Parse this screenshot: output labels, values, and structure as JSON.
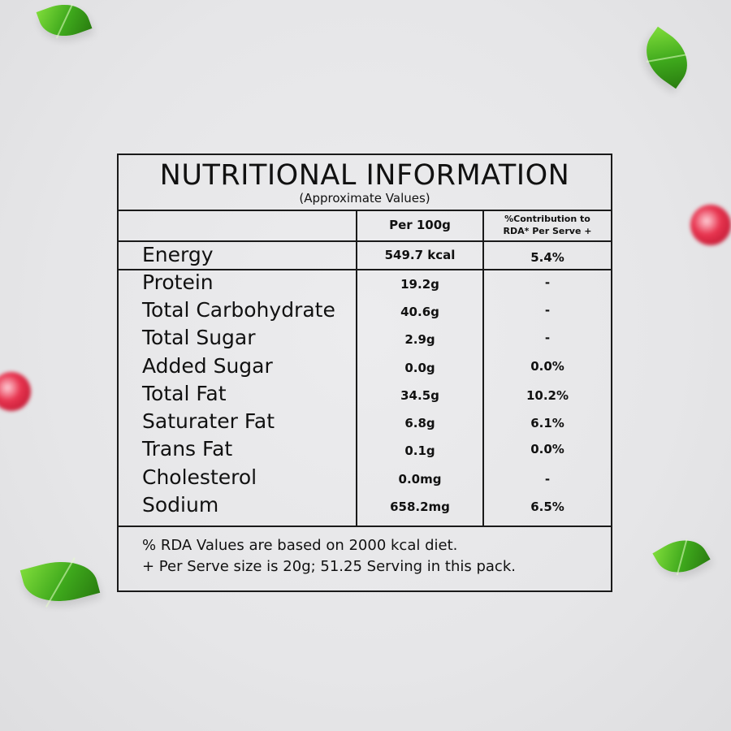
{
  "panel": {
    "title": "NUTRITIONAL INFORMATION",
    "subtitle": "(Approximate Values)",
    "columns": {
      "per100": "Per 100g",
      "rda_line1": "%Contribution to",
      "rda_line2": "RDA* Per Serve +"
    },
    "rows": [
      {
        "name": "Energy",
        "per100": "549.7 kcal",
        "rda": "5.4%"
      },
      {
        "name": "Protein",
        "per100": "19.2g",
        "rda": "-"
      },
      {
        "name": "Total Carbohydrate",
        "per100": "40.6g",
        "rda": "-"
      },
      {
        "name": "Total Sugar",
        "per100": "2.9g",
        "rda": "-"
      },
      {
        "name": "Added Sugar",
        "per100": "0.0g",
        "rda": "0.0%"
      },
      {
        "name": "Total Fat",
        "per100": "34.5g",
        "rda": "10.2%"
      },
      {
        "name": "Saturater Fat",
        "per100": "6.8g",
        "rda": "6.1%"
      },
      {
        "name": "Trans Fat",
        "per100": "0.1g",
        "rda": "0.0%"
      },
      {
        "name": "Cholesterol",
        "per100": "0.0mg",
        "rda": "-"
      },
      {
        "name": "Sodium",
        "per100": "658.2mg",
        "rda": "6.5%"
      }
    ],
    "footnotes": [
      "% RDA Values are based on 2000 kcal diet.",
      "+ Per Serve size is 20g; 51.25 Serving in this pack."
    ]
  },
  "colors": {
    "border": "#1a1a1a",
    "background": "#e8e8ea",
    "leaf": "#3ea81c",
    "berry": "#e8344f"
  }
}
